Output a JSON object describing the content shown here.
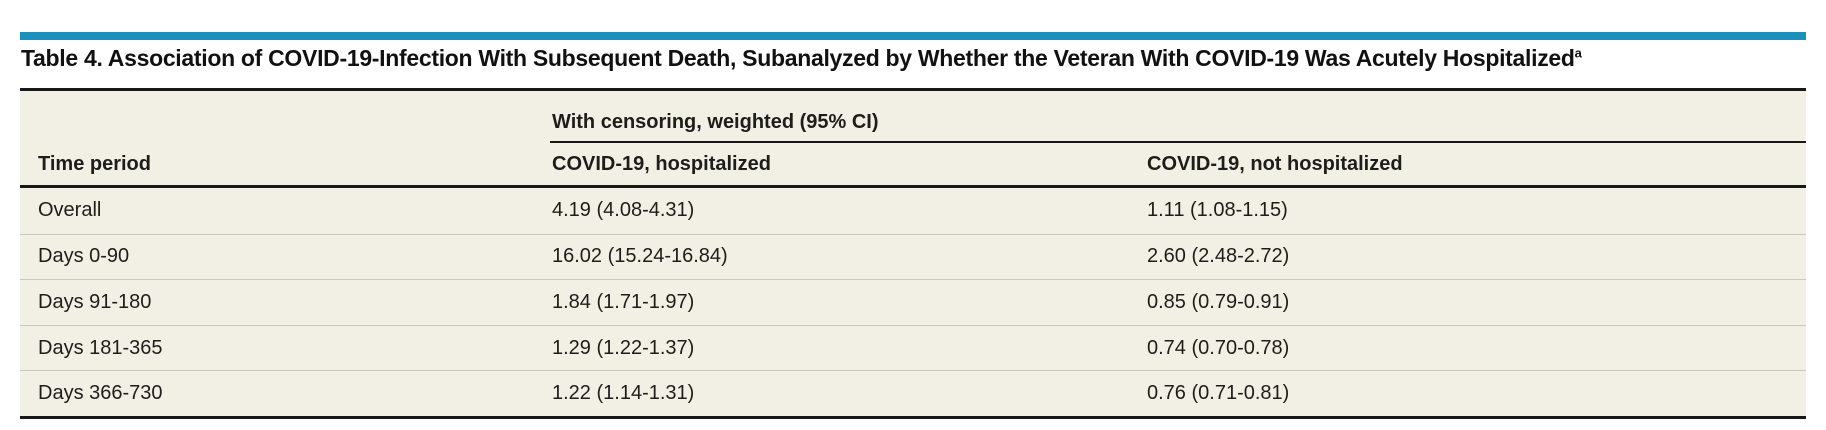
{
  "colors": {
    "accent_bar": "#1a90ba",
    "table_background": "#f2efe4",
    "rule_black": "#181818",
    "row_divider": "#cac7bb",
    "text": "#1d1d1b"
  },
  "title": {
    "text": "Table 4. Association of COVID-19-Infection With Subsequent Death, Subanalyzed by Whether the Veteran With COVID-19 Was Acutely Hospitalized",
    "footnote_marker": "a"
  },
  "table": {
    "group_header": "With censoring, weighted (95% CI)",
    "columns": {
      "time_period": "Time period",
      "hospitalized": "COVID-19, hospitalized",
      "not_hospitalized": "COVID-19, not hospitalized"
    },
    "rows": [
      {
        "period": "Overall",
        "hospitalized": "4.19 (4.08-4.31)",
        "not_hospitalized": "1.11 (1.08-1.15)"
      },
      {
        "period": "Days 0-90",
        "hospitalized": "16.02 (15.24-16.84)",
        "not_hospitalized": "2.60 (2.48-2.72)"
      },
      {
        "period": "Days 91-180",
        "hospitalized": "1.84 (1.71-1.97)",
        "not_hospitalized": "0.85 (0.79-0.91)"
      },
      {
        "period": "Days 181-365",
        "hospitalized": "1.29 (1.22-1.37)",
        "not_hospitalized": "0.74 (0.70-0.78)"
      },
      {
        "period": "Days 366-730",
        "hospitalized": "1.22 (1.14-1.31)",
        "not_hospitalized": "0.76 (0.71-0.81)"
      }
    ]
  },
  "chart_data": {
    "type": "table",
    "title": "Table 4. Association of COVID-19-Infection With Subsequent Death, Subanalyzed by Whether the Veteran With COVID-19 Was Acutely Hospitalized",
    "group_header": "With censoring, weighted (95% CI)",
    "columns": [
      "Time period",
      "COVID-19, hospitalized",
      "COVID-19, not hospitalized"
    ],
    "rows": [
      [
        "Overall",
        "4.19 (4.08-4.31)",
        "1.11 (1.08-1.15)"
      ],
      [
        "Days 0-90",
        "16.02 (15.24-16.84)",
        "2.60 (2.48-2.72)"
      ],
      [
        "Days 91-180",
        "1.84 (1.71-1.97)",
        "0.85 (0.79-0.91)"
      ],
      [
        "Days 181-365",
        "1.29 (1.22-1.37)",
        "0.74 (0.70-0.78)"
      ],
      [
        "Days 366-730",
        "1.22 (1.14-1.31)",
        "0.76 (0.71-0.81)"
      ]
    ]
  }
}
